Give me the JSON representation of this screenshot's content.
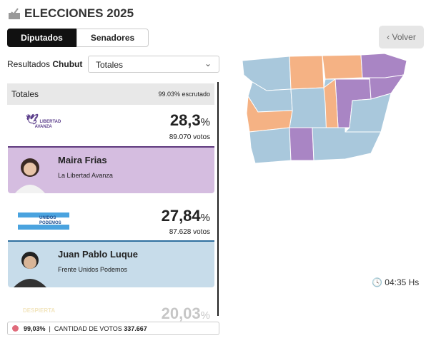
{
  "header": {
    "title": "ELECCIONES 2025",
    "tabs": [
      "Diputados",
      "Senadores"
    ],
    "back": "Volver"
  },
  "filter": {
    "label": "Resultados",
    "province": "Chubut",
    "selected": "Totales"
  },
  "summary": {
    "title": "Totales",
    "scrutinized": "99.03% escrutado"
  },
  "results": [
    {
      "logo": [
        "LIBERTAD",
        "AVANZA"
      ],
      "value": "28,3",
      "unit": "%",
      "votes": "89.070 votos",
      "candidate": "Maira Frias",
      "party": "La Libertad Avanza"
    },
    {
      "logo": [
        "UNIDOS",
        "PODEMOS"
      ],
      "value": "27,84",
      "unit": "%",
      "votes": "87.628 votos",
      "candidate": "Juan Pablo Luque",
      "party": "Frente Unidos Podemos"
    },
    {
      "logo": [
        "DESPIERTA"
      ],
      "value": "20,03",
      "unit": "%"
    }
  ],
  "time": "04:35 Hs",
  "footer": {
    "scrutinized": "99,03%",
    "label": "CANTIDAD DE VOTOS",
    "votes": "337.667"
  }
}
